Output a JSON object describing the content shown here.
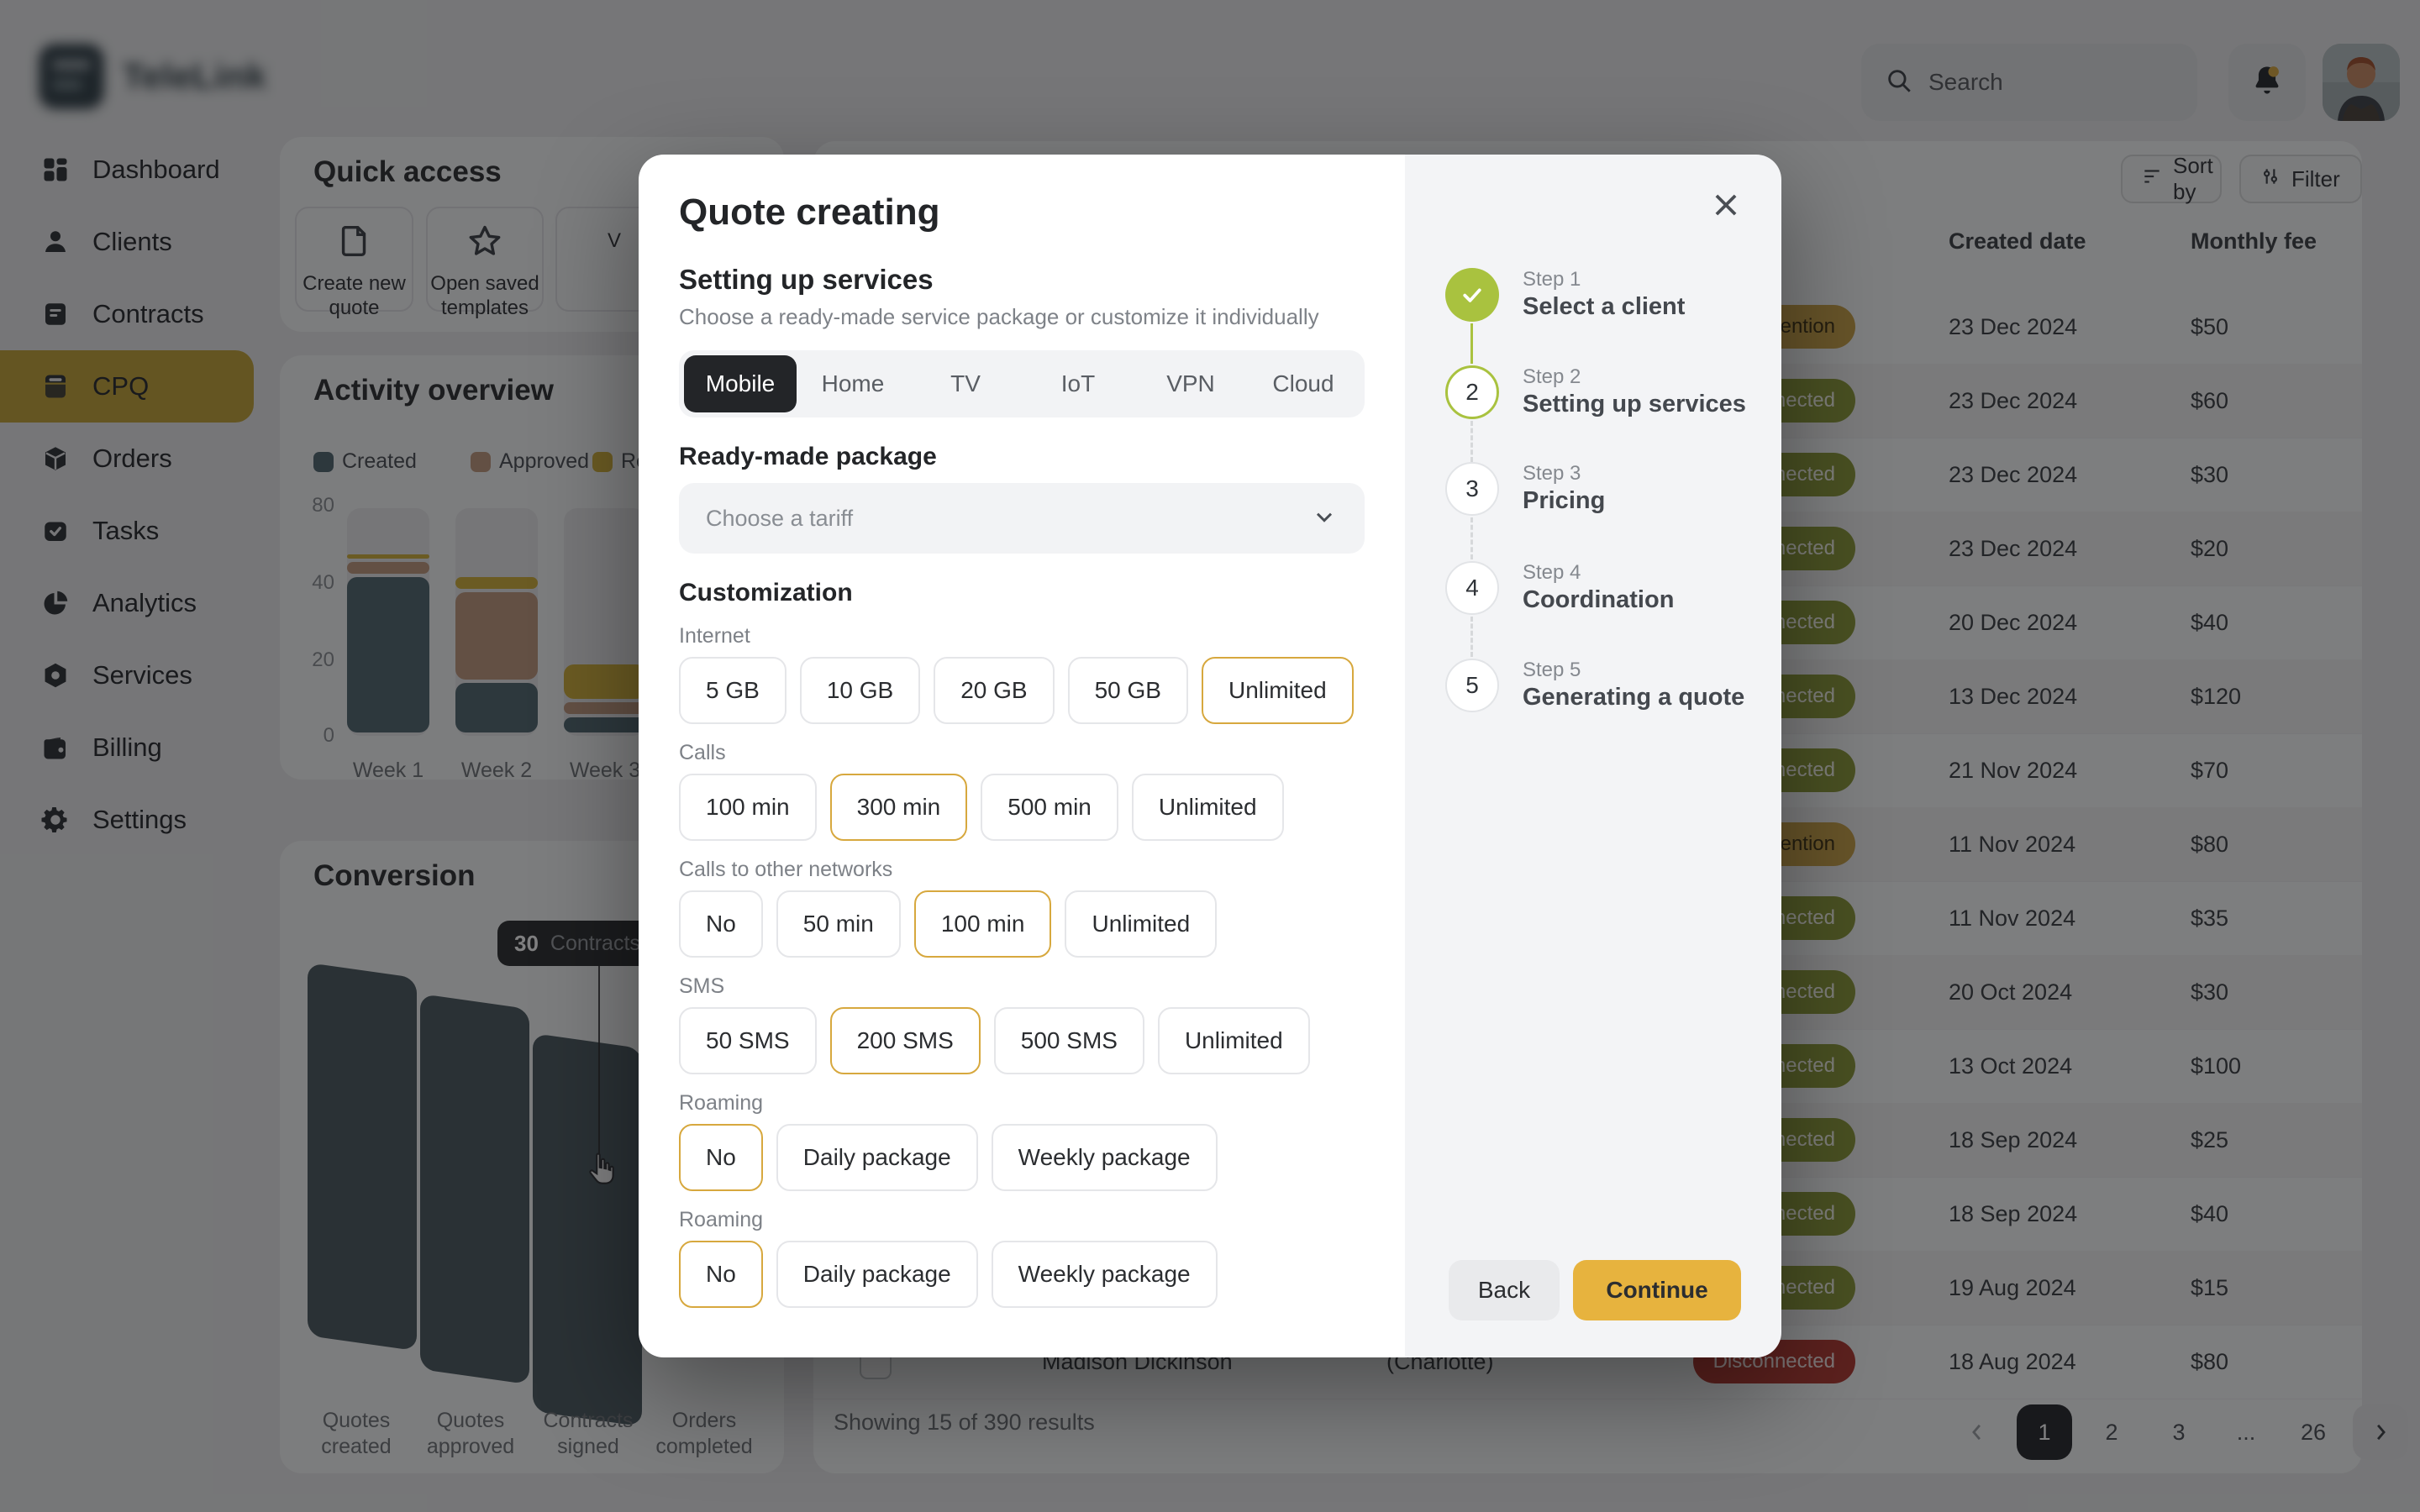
{
  "topbar": {
    "logo_text": "TeleLink",
    "search_placeholder": "Search"
  },
  "sidebar": {
    "items": [
      {
        "label": "Dashboard",
        "icon": "dashboard",
        "active": false
      },
      {
        "label": "Clients",
        "icon": "clients",
        "active": false
      },
      {
        "label": "Contracts",
        "icon": "contracts",
        "active": false
      },
      {
        "label": "CPQ",
        "icon": "cpq",
        "active": true
      },
      {
        "label": "Orders",
        "icon": "orders",
        "active": false
      },
      {
        "label": "Tasks",
        "icon": "tasks",
        "active": false
      },
      {
        "label": "Analytics",
        "icon": "analytics",
        "active": false
      },
      {
        "label": "Services",
        "icon": "services",
        "active": false
      },
      {
        "label": "Billing",
        "icon": "billing",
        "active": false
      },
      {
        "label": "Settings",
        "icon": "settings",
        "active": false
      }
    ]
  },
  "quick_access": {
    "title": "Quick access",
    "cards": [
      {
        "label": "Create new quote",
        "icon": "file"
      },
      {
        "label": "Open saved templates",
        "icon": "star"
      },
      {
        "label": "V",
        "icon": "none"
      }
    ]
  },
  "activity": {
    "title": "Activity overview",
    "chart_data": {
      "type": "bar",
      "stacked": true,
      "categories": [
        "Week 1",
        "Week 2",
        "Week 3"
      ],
      "series": [
        {
          "name": "Created",
          "color": "#4f6670",
          "values": [
            44,
            14,
            5
          ]
        },
        {
          "name": "Approved",
          "color": "#c2997e",
          "values": [
            8,
            24,
            4
          ]
        },
        {
          "name": "Rejected",
          "color": "#d3b138",
          "values": [
            4,
            6,
            10
          ]
        }
      ],
      "y_ticks": [
        80,
        40,
        20,
        0
      ],
      "ylim": [
        0,
        80
      ],
      "grid": false,
      "legend_position": "top"
    }
  },
  "conversion": {
    "title": "Conversion",
    "stages": [
      "Quotes created",
      "Quotes approved",
      "Contracts signed",
      "Orders completed"
    ],
    "tooltip": {
      "value": "30",
      "label": "Contracts signed"
    }
  },
  "table": {
    "sort_label": "Sort by",
    "filter_label": "Filter",
    "columns": [
      "Created date",
      "Monthly fee"
    ],
    "status_labels": {
      "attention": "Requires attention",
      "connected": "Connected",
      "disconnected": "Disconnected"
    },
    "rows": [
      {
        "status": "attention",
        "date": "23 Dec 2024",
        "fee": "$50"
      },
      {
        "status": "connected",
        "date": "23 Dec 2024",
        "fee": "$60"
      },
      {
        "status": "connected",
        "date": "23 Dec 2024",
        "fee": "$30"
      },
      {
        "status": "connected",
        "date": "23 Dec 2024",
        "fee": "$20"
      },
      {
        "status": "connected",
        "date": "20 Dec 2024",
        "fee": "$40"
      },
      {
        "status": "connected",
        "date": "13 Dec 2024",
        "fee": "$120"
      },
      {
        "status": "connected",
        "date": "21 Nov 2024",
        "fee": "$70"
      },
      {
        "status": "attention",
        "date": "11 Nov 2024",
        "fee": "$80"
      },
      {
        "status": "connected",
        "date": "11 Nov 2024",
        "fee": "$35"
      },
      {
        "status": "connected",
        "date": "20 Oct 2024",
        "fee": "$30"
      },
      {
        "status": "connected",
        "date": "13 Oct 2024",
        "fee": "$100"
      },
      {
        "status": "connected",
        "date": "18 Sep 2024",
        "fee": "$25"
      },
      {
        "status": "connected",
        "date": "18 Sep 2024",
        "fee": "$40"
      },
      {
        "status": "connected",
        "date": "19 Aug 2024",
        "fee": "$15"
      },
      {
        "status": "disconnected",
        "date": "18 Aug 2024",
        "fee": "$80",
        "fragment": {
          "name": "Madison Dickinson",
          "location": "(Charlotte)"
        }
      }
    ],
    "footer": "Showing 15 of 390 results"
  },
  "pagination": {
    "pages": [
      "1",
      "2",
      "3",
      "...",
      "26"
    ],
    "current": "1"
  },
  "modal": {
    "title": "Quote creating",
    "section": {
      "heading": "Setting up services",
      "subtitle": "Choose a ready-made service package or customize it individually"
    },
    "tabs": {
      "items": [
        "Mobile",
        "Home",
        "TV",
        "IoT",
        "VPN",
        "Cloud"
      ],
      "active": "Mobile"
    },
    "package": {
      "heading": "Ready-made package",
      "placeholder": "Choose a tariff"
    },
    "customization": {
      "heading": "Customization",
      "groups": [
        {
          "label": "Internet",
          "options": [
            "5 GB",
            "10 GB",
            "20 GB",
            "50 GB",
            "Unlimited"
          ],
          "selected": "Unlimited"
        },
        {
          "label": "Calls",
          "options": [
            "100 min",
            "300 min",
            "500 min",
            "Unlimited"
          ],
          "selected": "300 min"
        },
        {
          "label": "Calls to other networks",
          "options": [
            "No",
            "50 min",
            "100 min",
            "Unlimited"
          ],
          "selected": "100 min"
        },
        {
          "label": "SMS",
          "options": [
            "50 SMS",
            "200 SMS",
            "500 SMS",
            "Unlimited"
          ],
          "selected": "200 SMS"
        },
        {
          "label": "Roaming",
          "options": [
            "No",
            "Daily package",
            "Weekly package"
          ],
          "selected": "No"
        },
        {
          "label": "Roaming",
          "options": [
            "No",
            "Daily package",
            "Weekly package"
          ],
          "selected": "No"
        }
      ]
    },
    "steps": [
      {
        "step": "Step 1",
        "title": "Select a client",
        "state": "done"
      },
      {
        "step": "Step 2",
        "title": "Setting up services",
        "state": "current"
      },
      {
        "step": "Step 3",
        "title": "Pricing",
        "state": "todo"
      },
      {
        "step": "Step 4",
        "title": "Coordination",
        "state": "todo"
      },
      {
        "step": "Step 5",
        "title": "Generating a quote",
        "state": "todo"
      }
    ],
    "buttons": {
      "back": "Back",
      "continue": "Continue"
    }
  },
  "colors": {
    "accent_gold": "#e7b33e",
    "chip_selected_border": "#d7a83e",
    "step_green": "#a9c23f",
    "sidebar_active": "#c4a437",
    "tab_active_bg": "#232528",
    "badge_attention": "#c9a144",
    "badge_connected": "#8b9a35",
    "badge_disconnected": "#b2372e",
    "funnel_bar": "#49575e"
  }
}
